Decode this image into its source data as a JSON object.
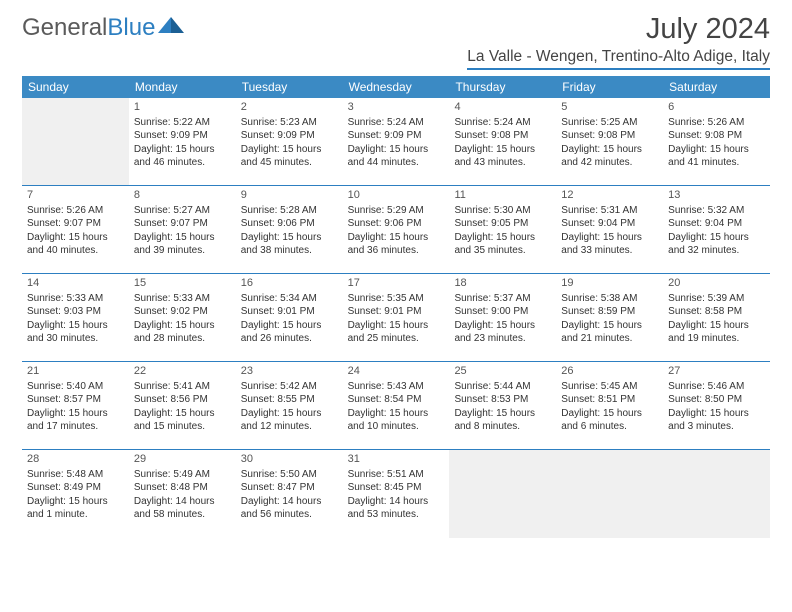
{
  "brand": {
    "part1": "General",
    "part2": "Blue"
  },
  "title": "July 2024",
  "location": "La Valle - Wengen, Trentino-Alto Adige, Italy",
  "colors": {
    "header_bg": "#3b8ac4",
    "accent": "#2d7fc1",
    "text": "#333333",
    "empty_bg": "#f0f0f0",
    "page_bg": "#ffffff"
  },
  "weekdays": [
    "Sunday",
    "Monday",
    "Tuesday",
    "Wednesday",
    "Thursday",
    "Friday",
    "Saturday"
  ],
  "weeks": [
    [
      null,
      {
        "n": "1",
        "sr": "5:22 AM",
        "ss": "9:09 PM",
        "dl1": "Daylight: 15 hours",
        "dl2": "and 46 minutes."
      },
      {
        "n": "2",
        "sr": "5:23 AM",
        "ss": "9:09 PM",
        "dl1": "Daylight: 15 hours",
        "dl2": "and 45 minutes."
      },
      {
        "n": "3",
        "sr": "5:24 AM",
        "ss": "9:09 PM",
        "dl1": "Daylight: 15 hours",
        "dl2": "and 44 minutes."
      },
      {
        "n": "4",
        "sr": "5:24 AM",
        "ss": "9:08 PM",
        "dl1": "Daylight: 15 hours",
        "dl2": "and 43 minutes."
      },
      {
        "n": "5",
        "sr": "5:25 AM",
        "ss": "9:08 PM",
        "dl1": "Daylight: 15 hours",
        "dl2": "and 42 minutes."
      },
      {
        "n": "6",
        "sr": "5:26 AM",
        "ss": "9:08 PM",
        "dl1": "Daylight: 15 hours",
        "dl2": "and 41 minutes."
      }
    ],
    [
      {
        "n": "7",
        "sr": "5:26 AM",
        "ss": "9:07 PM",
        "dl1": "Daylight: 15 hours",
        "dl2": "and 40 minutes."
      },
      {
        "n": "8",
        "sr": "5:27 AM",
        "ss": "9:07 PM",
        "dl1": "Daylight: 15 hours",
        "dl2": "and 39 minutes."
      },
      {
        "n": "9",
        "sr": "5:28 AM",
        "ss": "9:06 PM",
        "dl1": "Daylight: 15 hours",
        "dl2": "and 38 minutes."
      },
      {
        "n": "10",
        "sr": "5:29 AM",
        "ss": "9:06 PM",
        "dl1": "Daylight: 15 hours",
        "dl2": "and 36 minutes."
      },
      {
        "n": "11",
        "sr": "5:30 AM",
        "ss": "9:05 PM",
        "dl1": "Daylight: 15 hours",
        "dl2": "and 35 minutes."
      },
      {
        "n": "12",
        "sr": "5:31 AM",
        "ss": "9:04 PM",
        "dl1": "Daylight: 15 hours",
        "dl2": "and 33 minutes."
      },
      {
        "n": "13",
        "sr": "5:32 AM",
        "ss": "9:04 PM",
        "dl1": "Daylight: 15 hours",
        "dl2": "and 32 minutes."
      }
    ],
    [
      {
        "n": "14",
        "sr": "5:33 AM",
        "ss": "9:03 PM",
        "dl1": "Daylight: 15 hours",
        "dl2": "and 30 minutes."
      },
      {
        "n": "15",
        "sr": "5:33 AM",
        "ss": "9:02 PM",
        "dl1": "Daylight: 15 hours",
        "dl2": "and 28 minutes."
      },
      {
        "n": "16",
        "sr": "5:34 AM",
        "ss": "9:01 PM",
        "dl1": "Daylight: 15 hours",
        "dl2": "and 26 minutes."
      },
      {
        "n": "17",
        "sr": "5:35 AM",
        "ss": "9:01 PM",
        "dl1": "Daylight: 15 hours",
        "dl2": "and 25 minutes."
      },
      {
        "n": "18",
        "sr": "5:37 AM",
        "ss": "9:00 PM",
        "dl1": "Daylight: 15 hours",
        "dl2": "and 23 minutes."
      },
      {
        "n": "19",
        "sr": "5:38 AM",
        "ss": "8:59 PM",
        "dl1": "Daylight: 15 hours",
        "dl2": "and 21 minutes."
      },
      {
        "n": "20",
        "sr": "5:39 AM",
        "ss": "8:58 PM",
        "dl1": "Daylight: 15 hours",
        "dl2": "and 19 minutes."
      }
    ],
    [
      {
        "n": "21",
        "sr": "5:40 AM",
        "ss": "8:57 PM",
        "dl1": "Daylight: 15 hours",
        "dl2": "and 17 minutes."
      },
      {
        "n": "22",
        "sr": "5:41 AM",
        "ss": "8:56 PM",
        "dl1": "Daylight: 15 hours",
        "dl2": "and 15 minutes."
      },
      {
        "n": "23",
        "sr": "5:42 AM",
        "ss": "8:55 PM",
        "dl1": "Daylight: 15 hours",
        "dl2": "and 12 minutes."
      },
      {
        "n": "24",
        "sr": "5:43 AM",
        "ss": "8:54 PM",
        "dl1": "Daylight: 15 hours",
        "dl2": "and 10 minutes."
      },
      {
        "n": "25",
        "sr": "5:44 AM",
        "ss": "8:53 PM",
        "dl1": "Daylight: 15 hours",
        "dl2": "and 8 minutes."
      },
      {
        "n": "26",
        "sr": "5:45 AM",
        "ss": "8:51 PM",
        "dl1": "Daylight: 15 hours",
        "dl2": "and 6 minutes."
      },
      {
        "n": "27",
        "sr": "5:46 AM",
        "ss": "8:50 PM",
        "dl1": "Daylight: 15 hours",
        "dl2": "and 3 minutes."
      }
    ],
    [
      {
        "n": "28",
        "sr": "5:48 AM",
        "ss": "8:49 PM",
        "dl1": "Daylight: 15 hours",
        "dl2": "and 1 minute."
      },
      {
        "n": "29",
        "sr": "5:49 AM",
        "ss": "8:48 PM",
        "dl1": "Daylight: 14 hours",
        "dl2": "and 58 minutes."
      },
      {
        "n": "30",
        "sr": "5:50 AM",
        "ss": "8:47 PM",
        "dl1": "Daylight: 14 hours",
        "dl2": "and 56 minutes."
      },
      {
        "n": "31",
        "sr": "5:51 AM",
        "ss": "8:45 PM",
        "dl1": "Daylight: 14 hours",
        "dl2": "and 53 minutes."
      },
      null,
      null,
      null
    ]
  ]
}
